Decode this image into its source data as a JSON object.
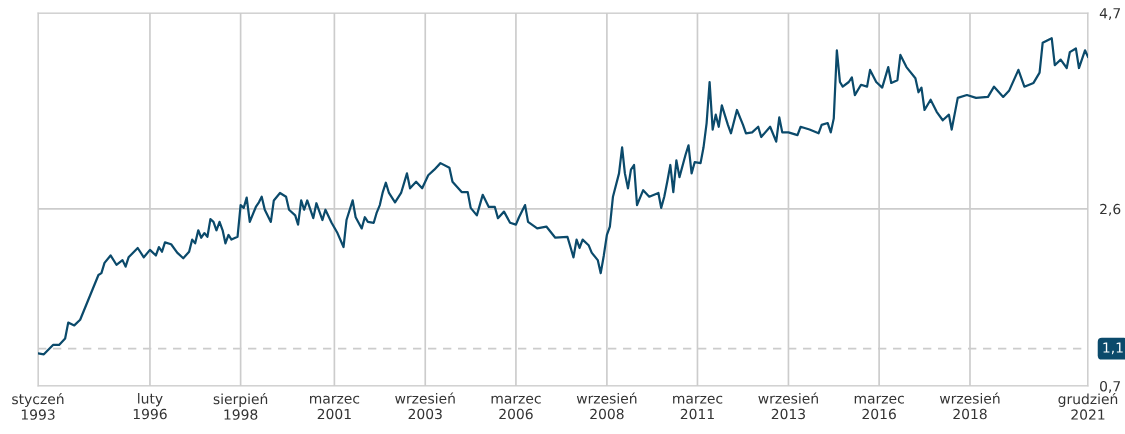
{
  "chart_data": {
    "type": "line",
    "x": [
      "1993-01",
      "1993-03",
      "1993-06",
      "1993-08",
      "1993-10",
      "1993-11",
      "1994-01",
      "1994-03",
      "1994-09",
      "1994-10",
      "1994-11",
      "1995-01",
      "1995-03",
      "1995-05",
      "1995-06",
      "1995-07",
      "1995-10",
      "1995-12",
      "1996-02",
      "1996-04",
      "1996-05",
      "1996-06",
      "1996-07",
      "1996-09",
      "1996-11",
      "1997-01",
      "1997-03",
      "1997-04",
      "1997-05",
      "1997-06",
      "1997-07",
      "1997-08",
      "1997-09",
      "1997-10",
      "1997-11",
      "1997-12",
      "1998-01",
      "1998-02",
      "1998-03",
      "1998-04",
      "1998-05",
      "1998-07",
      "1998-08",
      "1998-09",
      "1998-10",
      "1998-11",
      "1999-01",
      "1999-02",
      "1999-03",
      "1999-04",
      "1999-06",
      "1999-07",
      "1999-09",
      "1999-11",
      "1999-12",
      "2000-02",
      "2000-03",
      "2000-04",
      "2000-05",
      "2000-06",
      "2000-08",
      "2000-09",
      "2000-11",
      "2000-12",
      "2001-02",
      "2001-04",
      "2001-06",
      "2001-07",
      "2001-09",
      "2001-10",
      "2001-12",
      "2002-01",
      "2002-02",
      "2002-04",
      "2002-05",
      "2002-06",
      "2002-07",
      "2002-08",
      "2002-09",
      "2002-11",
      "2003-01",
      "2003-03",
      "2003-04",
      "2003-06",
      "2003-08",
      "2003-10",
      "2003-12",
      "2004-02",
      "2004-05",
      "2004-06",
      "2004-09",
      "2004-11",
      "2004-12",
      "2005-02",
      "2005-04",
      "2005-06",
      "2005-08",
      "2005-09",
      "2005-11",
      "2006-01",
      "2006-03",
      "2006-04",
      "2006-06",
      "2006-07",
      "2006-10",
      "2007-01",
      "2007-04",
      "2007-08",
      "2007-10",
      "2007-11",
      "2007-12",
      "2008-01",
      "2008-03",
      "2008-04",
      "2008-06",
      "2008-07",
      "2008-08",
      "2008-09",
      "2008-10",
      "2008-11",
      "2009-01",
      "2009-02",
      "2009-03",
      "2009-04",
      "2009-05",
      "2009-06",
      "2009-07",
      "2009-09",
      "2009-11",
      "2010-02",
      "2010-03",
      "2010-04",
      "2010-05",
      "2010-06",
      "2010-07",
      "2010-08",
      "2010-09",
      "2010-11",
      "2010-12",
      "2011-01",
      "2011-02",
      "2011-04",
      "2011-05",
      "2011-06",
      "2011-07",
      "2011-08",
      "2011-09",
      "2011-10",
      "2011-11",
      "2012-01",
      "2012-02",
      "2012-04",
      "2012-06",
      "2012-07",
      "2012-09",
      "2012-11",
      "2012-12",
      "2013-03",
      "2013-05",
      "2013-06",
      "2013-07",
      "2013-09",
      "2013-12",
      "2014-01",
      "2014-04",
      "2014-07",
      "2014-08",
      "2014-10",
      "2014-11",
      "2014-12",
      "2015-01",
      "2015-02",
      "2015-03",
      "2015-05",
      "2015-06",
      "2015-07",
      "2015-09",
      "2015-11",
      "2015-12",
      "2016-02",
      "2016-04",
      "2016-06",
      "2016-07",
      "2016-09",
      "2016-10",
      "2016-12",
      "2017-03",
      "2017-04",
      "2017-05",
      "2017-06",
      "2017-08",
      "2017-10",
      "2017-12",
      "2018-02",
      "2018-03",
      "2018-05",
      "2018-08",
      "2018-11",
      "2019-03",
      "2019-05",
      "2019-08",
      "2019-10",
      "2020-01",
      "2020-03",
      "2020-06",
      "2020-08",
      "2020-09",
      "2020-12",
      "2021-01",
      "2021-03",
      "2021-05",
      "2021-06",
      "2021-08",
      "2021-09",
      "2021-11",
      "2021-12"
    ],
    "series": [
      {
        "color": "#0b4a6b",
        "values": [
          1.05,
          1.04,
          1.14,
          1.14,
          1.21,
          1.38,
          1.35,
          1.41,
          1.89,
          1.91,
          2.02,
          2.1,
          2.0,
          2.05,
          1.98,
          2.08,
          2.18,
          2.08,
          2.16,
          2.1,
          2.19,
          2.14,
          2.24,
          2.22,
          2.13,
          2.07,
          2.14,
          2.27,
          2.23,
          2.37,
          2.29,
          2.34,
          2.3,
          2.49,
          2.46,
          2.37,
          2.46,
          2.37,
          2.23,
          2.32,
          2.27,
          2.3,
          2.64,
          2.61,
          2.72,
          2.46,
          2.62,
          2.67,
          2.73,
          2.59,
          2.46,
          2.69,
          2.77,
          2.73,
          2.59,
          2.53,
          2.43,
          2.69,
          2.59,
          2.69,
          2.5,
          2.66,
          2.48,
          2.59,
          2.45,
          2.34,
          2.19,
          2.48,
          2.69,
          2.51,
          2.39,
          2.51,
          2.46,
          2.45,
          2.56,
          2.64,
          2.78,
          2.88,
          2.77,
          2.67,
          2.77,
          2.98,
          2.82,
          2.89,
          2.82,
          2.96,
          3.02,
          3.09,
          3.04,
          2.89,
          2.78,
          2.78,
          2.61,
          2.53,
          2.75,
          2.62,
          2.62,
          2.5,
          2.57,
          2.45,
          2.43,
          2.51,
          2.64,
          2.46,
          2.39,
          2.41,
          2.29,
          2.3,
          2.08,
          2.27,
          2.18,
          2.27,
          2.21,
          2.13,
          2.05,
          1.91,
          2.1,
          2.32,
          2.41,
          2.73,
          2.98,
          3.26,
          2.98,
          2.82,
          3.02,
          3.07,
          2.64,
          2.8,
          2.73,
          2.77,
          2.61,
          2.73,
          2.89,
          3.07,
          2.78,
          3.12,
          2.94,
          3.18,
          3.28,
          2.98,
          3.1,
          3.09,
          3.26,
          3.52,
          3.96,
          3.45,
          3.61,
          3.48,
          3.71,
          3.5,
          3.41,
          3.66,
          3.5,
          3.41,
          3.42,
          3.48,
          3.37,
          3.48,
          3.32,
          3.58,
          3.42,
          3.42,
          3.39,
          3.48,
          3.45,
          3.41,
          3.5,
          3.52,
          3.42,
          3.57,
          4.3,
          3.96,
          3.91,
          3.96,
          4.01,
          3.82,
          3.93,
          3.91,
          4.09,
          3.96,
          3.9,
          4.12,
          3.95,
          3.98,
          4.25,
          4.12,
          4.0,
          3.85,
          3.9,
          3.66,
          3.77,
          3.64,
          3.55,
          3.61,
          3.45,
          3.79,
          3.82,
          3.79,
          3.8,
          3.91,
          3.8,
          3.87,
          4.09,
          3.91,
          3.95,
          4.06,
          4.38,
          4.43,
          4.14,
          4.2,
          4.11,
          4.28,
          4.32,
          4.11,
          4.3,
          4.23
        ]
      }
    ],
    "xlim": [
      "1993-01",
      "2021-12"
    ],
    "xticks": [
      {
        "value": "1993-01",
        "label": "styczeń\n1993"
      },
      {
        "value": "1996-02",
        "label": "luty\n1996"
      },
      {
        "value": "1998-08",
        "label": "sierpień\n1998"
      },
      {
        "value": "2001-03",
        "label": "marzec\n2001"
      },
      {
        "value": "2003-09",
        "label": "wrzesień\n2003"
      },
      {
        "value": "2006-03",
        "label": "marzec\n2006"
      },
      {
        "value": "2008-09",
        "label": "wrzesień\n2008"
      },
      {
        "value": "2011-03",
        "label": "marzec\n2011"
      },
      {
        "value": "2013-09",
        "label": "wrzesień\n2013"
      },
      {
        "value": "2016-03",
        "label": "marzec\n2016"
      },
      {
        "value": "2018-09",
        "label": "wrzesień\n2018"
      },
      {
        "value": "2021-12",
        "label": "grudzień\n2021"
      }
    ],
    "ylim": [
      0.7,
      4.7
    ],
    "yticks": [
      {
        "value": 0.7,
        "label": "0,7"
      },
      {
        "value": 2.6,
        "label": "2,6"
      },
      {
        "value": 4.7,
        "label": "4,7"
      }
    ],
    "ref_lines": [
      {
        "axis": "y",
        "value": 1.1,
        "label": "1,1",
        "color": "#cccccc",
        "line_style": "dashed"
      }
    ],
    "grid": true,
    "line_style": "solid",
    "marker": "none",
    "legend": false
  }
}
